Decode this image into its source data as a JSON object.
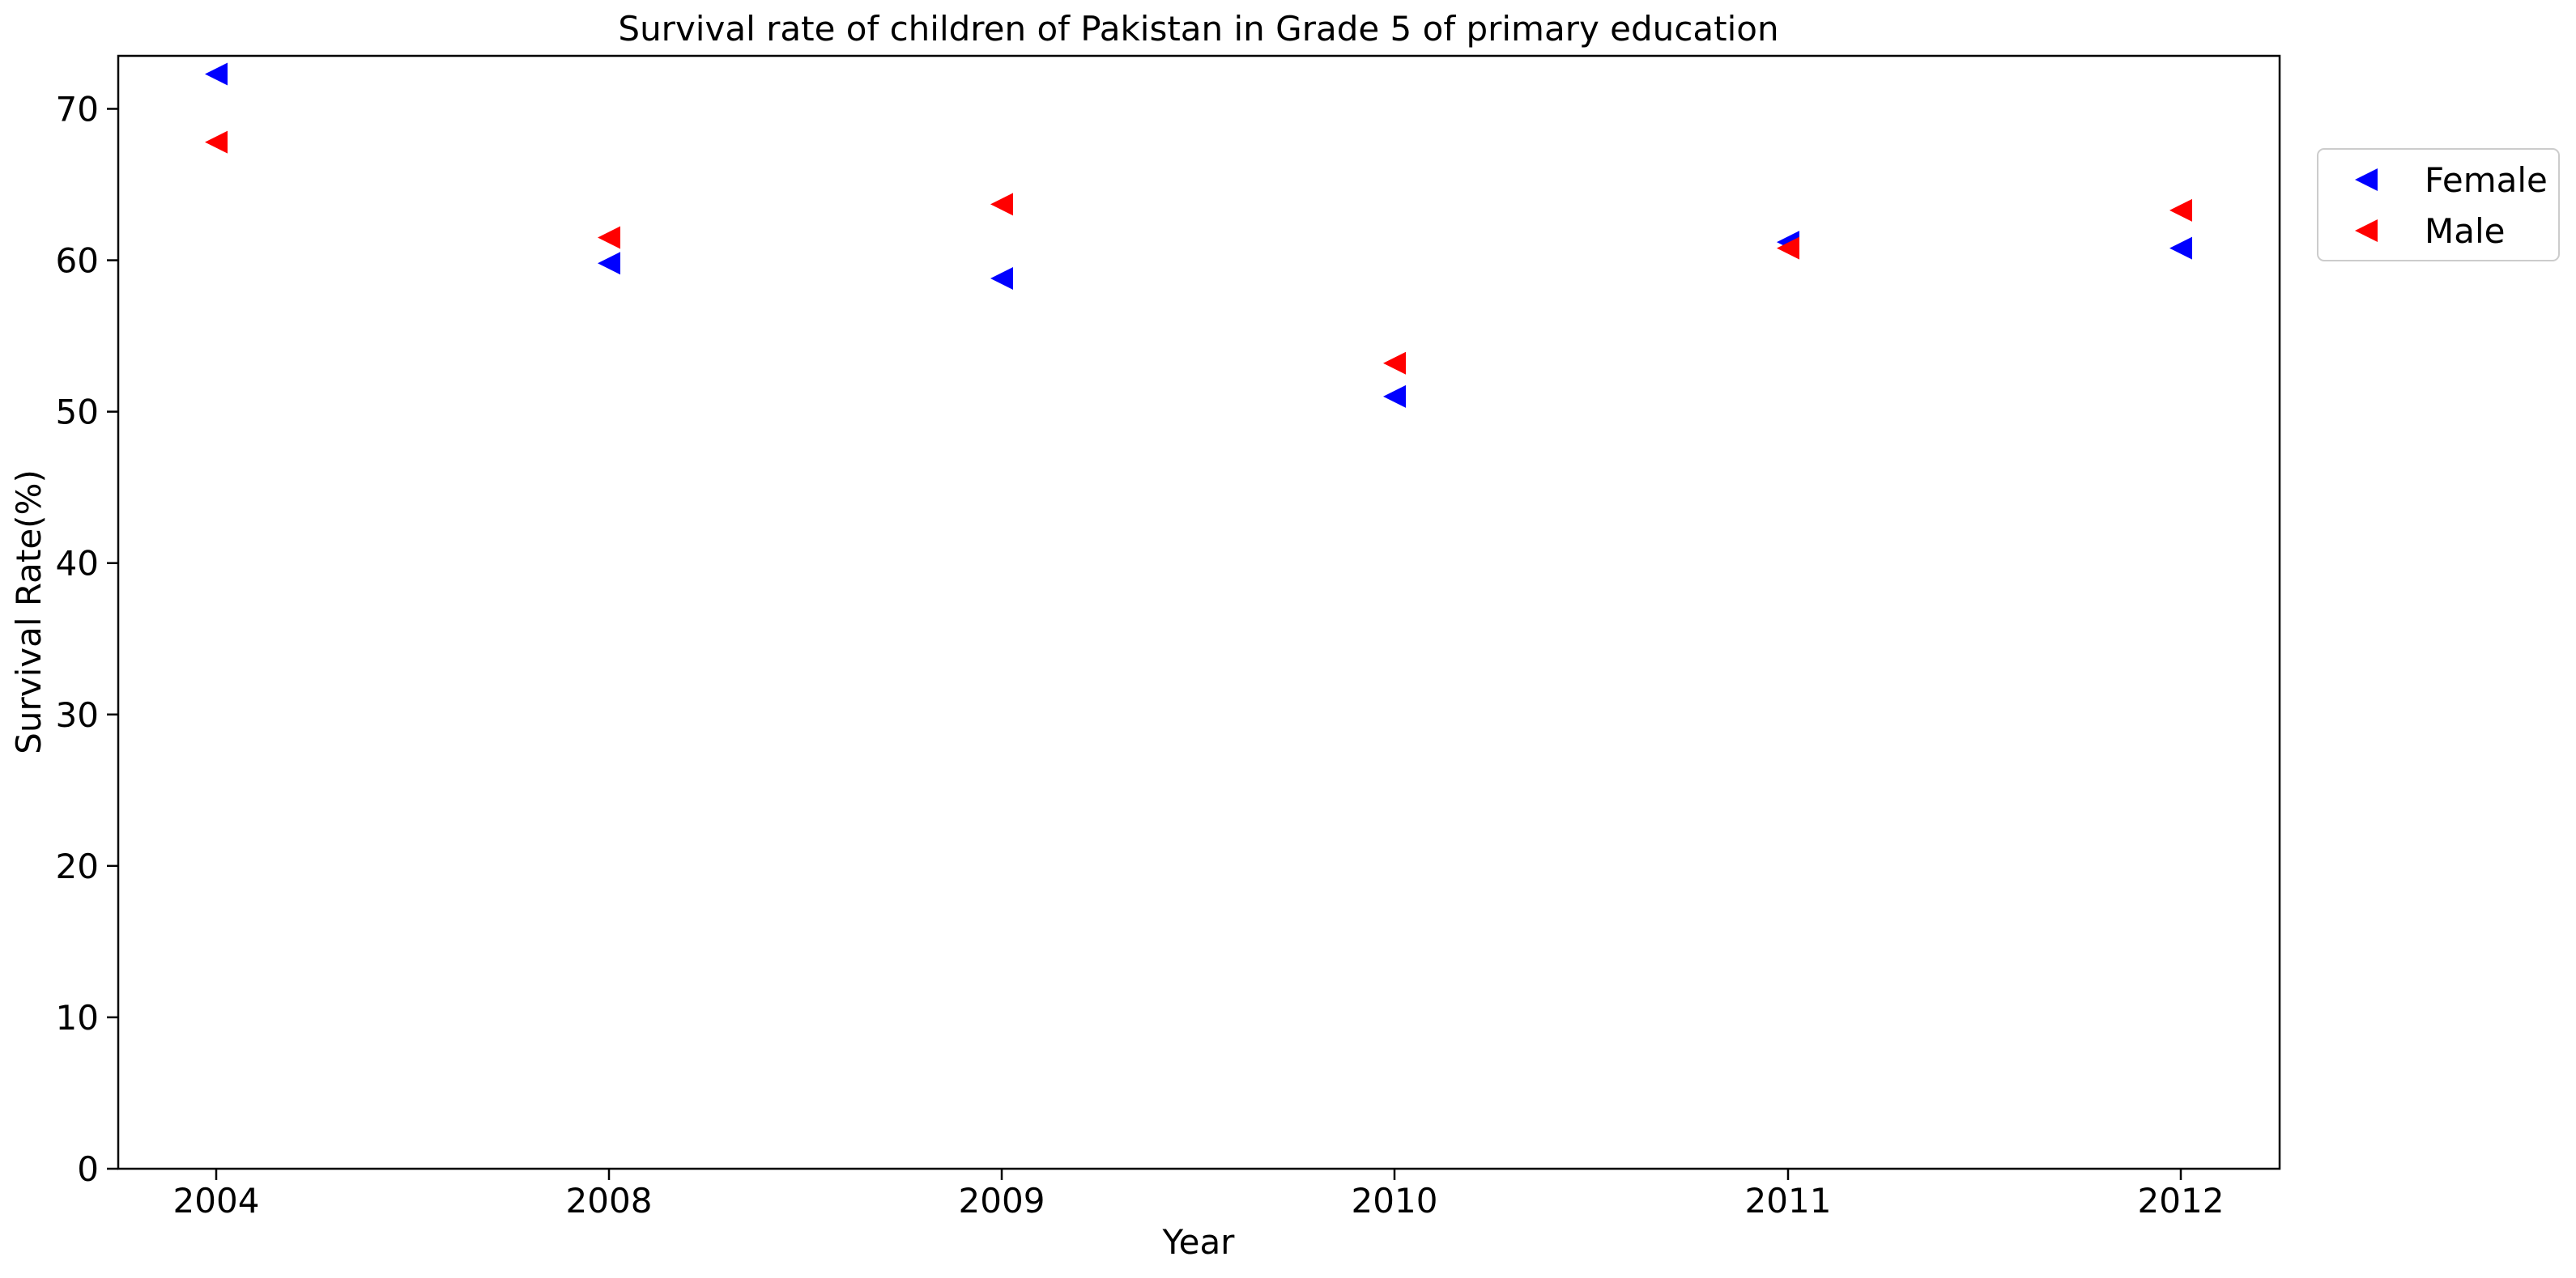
{
  "chart_data": {
    "type": "scatter",
    "title": "Survival rate of children of Pakistan in Grade 5 of primary education",
    "xlabel": "Year",
    "ylabel": "Survival Rate(%)",
    "categories": [
      "2004",
      "2008",
      "2009",
      "2010",
      "2011",
      "2012"
    ],
    "ylim": [
      0,
      73.5
    ],
    "yticks": [
      0,
      10,
      20,
      30,
      40,
      50,
      60,
      70
    ],
    "grid": false,
    "legend_position": "outside-right-top",
    "marker": "triangle-left",
    "series": [
      {
        "name": "Female",
        "color": "#0000ff",
        "values": [
          72.3,
          59.8,
          58.8,
          51.0,
          61.2,
          60.8
        ]
      },
      {
        "name": "Male",
        "color": "#ff0000",
        "values": [
          67.8,
          61.5,
          63.7,
          53.2,
          60.8,
          63.3
        ]
      }
    ]
  }
}
